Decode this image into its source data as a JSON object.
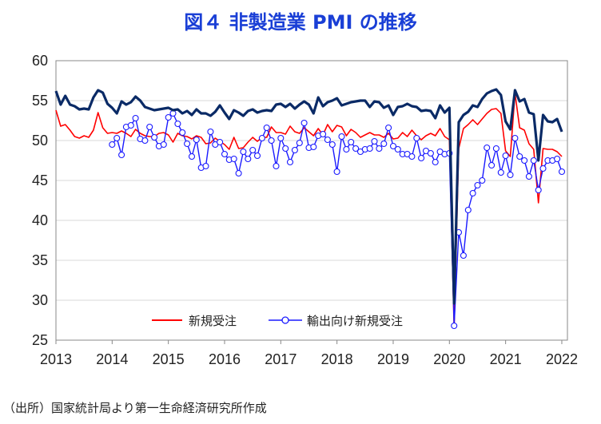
{
  "chart_data": {
    "type": "line",
    "title": "図４ 非製造業 PMI の推移",
    "xlabel": "",
    "ylabel": "",
    "ylim": [
      25,
      60
    ],
    "yticks": [
      25,
      30,
      35,
      40,
      45,
      50,
      55,
      60
    ],
    "xlim": [
      2013,
      2022.1
    ],
    "xticks": [
      "2013",
      "2014",
      "2015",
      "2016",
      "2017",
      "2018",
      "2019",
      "2020",
      "2021",
      "2022"
    ],
    "grid": true,
    "legend_position": "bottom-center",
    "colors": {
      "new_orders": "#ff0000",
      "export_orders": "#1a1aff",
      "pmi": "#0a2a66"
    },
    "series": [
      {
        "name": "",
        "key": "pmi",
        "values": [
          56.2,
          54.5,
          55.6,
          54.5,
          54.3,
          53.9,
          54.0,
          53.9,
          55.4,
          56.3,
          56.0,
          54.6,
          54.1,
          53.4,
          54.9,
          54.5,
          54.8,
          55.5,
          55.0,
          54.2,
          54.0,
          53.8,
          53.9,
          54.0,
          54.1,
          53.8,
          53.9,
          53.4,
          53.7,
          53.2,
          53.9,
          53.4,
          53.4,
          53.1,
          53.6,
          54.4,
          53.5,
          52.7,
          53.8,
          53.5,
          53.1,
          53.7,
          53.9,
          53.5,
          53.7,
          53.8,
          53.7,
          54.5,
          54.6,
          54.2,
          54.6,
          54.0,
          54.5,
          54.9,
          54.5,
          53.4,
          55.4,
          54.3,
          54.8,
          55.0,
          55.3,
          54.4,
          54.6,
          54.8,
          54.9,
          55.0,
          55.0,
          54.2,
          54.9,
          54.8,
          54.1,
          54.4,
          53.2,
          54.2,
          54.3,
          54.6,
          54.3,
          54.2,
          53.7,
          53.8,
          53.7,
          52.8,
          54.4,
          53.5,
          54.1,
          29.6,
          52.3,
          53.2,
          53.6,
          54.4,
          54.2,
          55.2,
          55.9,
          56.2,
          56.4,
          55.7,
          52.4,
          51.4,
          56.3,
          54.9,
          55.2,
          53.5,
          53.3,
          47.5,
          53.2,
          52.4,
          52.3,
          52.7,
          51.1
        ]
      },
      {
        "name": "新規受注",
        "key": "new_orders",
        "values": [
          53.8,
          51.8,
          52.0,
          51.3,
          50.5,
          50.3,
          50.6,
          50.4,
          51.3,
          53.5,
          51.6,
          50.9,
          51.0,
          50.9,
          51.2,
          50.9,
          50.5,
          51.4,
          50.9,
          50.6,
          50.5,
          50.5,
          50.9,
          51.0,
          50.7,
          49.8,
          50.9,
          50.6,
          50.5,
          50.2,
          50.6,
          50.4,
          49.6,
          49.7,
          50.3,
          49.9,
          49.5,
          48.9,
          50.4,
          49.0,
          49.1,
          49.8,
          50.4,
          49.9,
          50.4,
          50.4,
          51.7,
          51.0,
          51.0,
          50.8,
          51.8,
          51.1,
          50.9,
          51.6,
          51.1,
          50.6,
          51.5,
          50.7,
          52.0,
          51.1,
          51.9,
          51.7,
          50.6,
          51.4,
          51.0,
          50.4,
          50.7,
          51.0,
          50.7,
          50.7,
          50.4,
          50.9,
          50.2,
          50.3,
          51.0,
          50.5,
          51.3,
          50.6,
          50.1,
          50.6,
          50.9,
          50.6,
          51.5,
          50.5,
          50.1,
          26.5,
          49.0,
          51.5,
          52.0,
          52.6,
          52.0,
          52.7,
          53.4,
          53.9,
          54.0,
          53.4,
          48.7,
          48.0,
          55.9,
          51.6,
          51.3,
          49.6,
          48.9,
          42.2,
          49.0,
          48.9,
          48.9,
          48.6,
          48.0
        ]
      },
      {
        "name": "輸出向け新規受注",
        "key": "export_orders",
        "values": [
          null,
          null,
          null,
          null,
          null,
          null,
          null,
          null,
          null,
          null,
          null,
          null,
          49.5,
          50.3,
          48.2,
          51.7,
          51.9,
          52.8,
          50.2,
          50.0,
          51.7,
          50.4,
          49.3,
          49.5,
          52.9,
          53.4,
          52.1,
          51.0,
          49.6,
          48.0,
          50.1,
          46.6,
          46.8,
          51.1,
          49.5,
          49.8,
          48.3,
          47.6,
          47.7,
          45.9,
          48.6,
          47.7,
          48.8,
          48.1,
          50.3,
          51.6,
          50.0,
          46.8,
          50.3,
          49.0,
          47.3,
          48.8,
          49.7,
          52.2,
          49.1,
          49.2,
          50.6,
          50.8,
          50.1,
          49.5,
          46.1,
          50.5,
          48.9,
          49.8,
          49.0,
          48.6,
          48.9,
          49.0,
          49.9,
          49.0,
          49.6,
          51.6,
          49.3,
          48.9,
          48.3,
          48.3,
          48.0,
          50.3,
          47.8,
          48.7,
          48.4,
          47.3,
          48.6,
          48.3,
          48.4,
          26.8,
          38.5,
          35.6,
          41.3,
          43.4,
          44.4,
          45.0,
          49.1,
          46.9,
          49.0,
          46.0,
          48.1,
          45.7,
          50.3,
          48.0,
          47.5,
          45.5,
          47.5,
          43.8,
          46.5,
          47.5,
          47.5,
          47.7,
          46.1
        ]
      }
    ]
  },
  "source_note": "（出所）国家統計局より第一生命経済研究所作成"
}
